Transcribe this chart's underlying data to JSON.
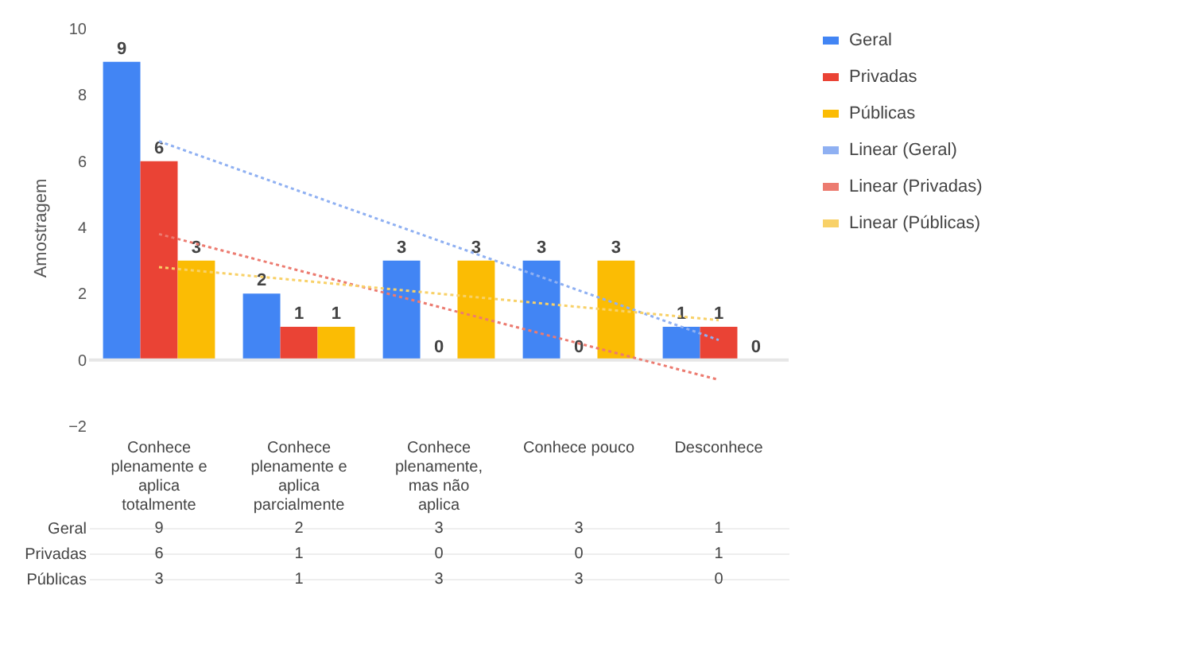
{
  "chart_data": {
    "type": "bar",
    "ylabel": "Amostragem",
    "categories": [
      "Conhece plenamente e aplica totalmente",
      "Conhece plenamente e aplica parcialmente",
      "Conhece plenamente, mas não aplica",
      "Conhece pouco",
      "Desconhece"
    ],
    "series": [
      {
        "name": "Geral",
        "color": "#4285f4",
        "values": [
          9,
          2,
          3,
          3,
          1
        ],
        "value_labels": [
          "9",
          "2",
          "3",
          "3",
          "1"
        ]
      },
      {
        "name": "Privadas",
        "color": "#ea4335",
        "values": [
          6,
          1,
          0,
          0,
          1
        ],
        "value_labels": [
          "6",
          "1",
          "0",
          "0",
          "1"
        ]
      },
      {
        "name": "Públicas",
        "color": "#fbbc04",
        "values": [
          3,
          1,
          3,
          3,
          0
        ],
        "value_labels": [
          "3",
          "1",
          "3",
          "3",
          "0"
        ]
      },
      {
        "name": "Linear (Geral)",
        "type": "line",
        "color": "#8fb0f2",
        "line_style": "dotted",
        "x": [
          "Conhece plenamente e aplica totalmente",
          "Desconhece"
        ],
        "values": [
          6.6,
          0.6
        ]
      },
      {
        "name": "Linear (Privadas)",
        "type": "line",
        "color": "#ec7b70",
        "line_style": "dotted",
        "x": [
          "Conhece plenamente e aplica totalmente",
          "Desconhece"
        ],
        "values": [
          3.8,
          -0.6
        ]
      },
      {
        "name": "Linear (Públicas)",
        "type": "line",
        "color": "#f8d168",
        "line_style": "dotted",
        "x": [
          "Conhece plenamente e aplica totalmente",
          "Desconhece"
        ],
        "values": [
          2.8,
          1.2
        ]
      }
    ],
    "ylim": [
      -2,
      10
    ],
    "yticks": [
      -2,
      0,
      2,
      4,
      6,
      8,
      10
    ],
    "grid": false,
    "legend": "right",
    "ref_lines": [
      {
        "axis": "y",
        "value": 0,
        "color": "#e6e6e6"
      }
    ]
  }
}
